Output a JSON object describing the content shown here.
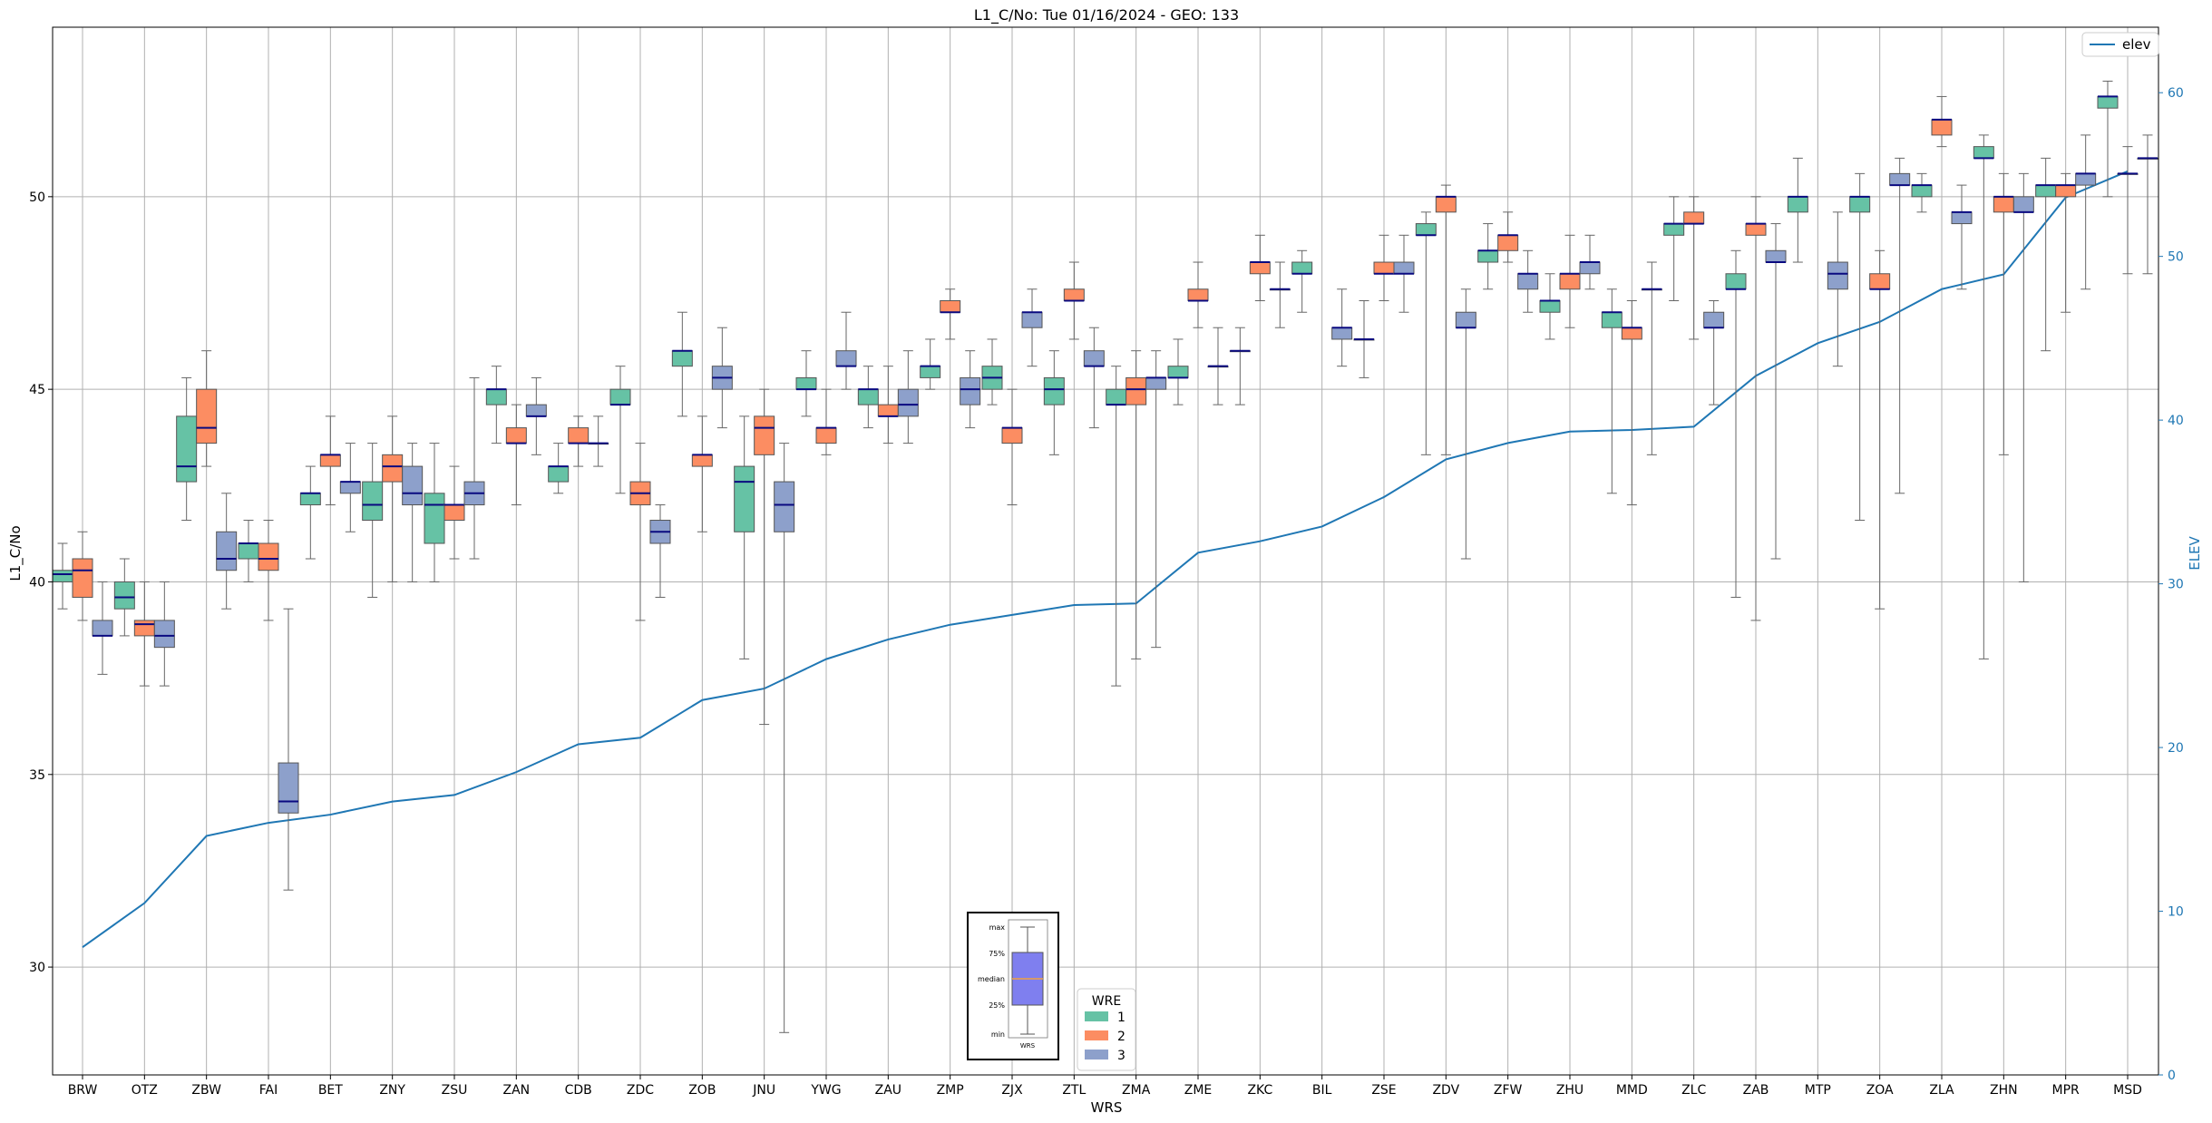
{
  "chart_data": {
    "type": "box",
    "title": "L1_C/No: Tue 01/16/2024 - GEO: 133",
    "xlabel": "WRS",
    "ylabel": "L1_C/No",
    "y2label": "ELEV",
    "ylim": [
      27.2,
      54.4
    ],
    "y2lim": [
      0,
      64
    ],
    "yticks": [
      30,
      35,
      40,
      45,
      50
    ],
    "y2ticks": [
      0,
      10,
      20,
      30,
      40,
      50,
      60
    ],
    "grid": true,
    "categories": [
      "BRW",
      "OTZ",
      "ZBW",
      "FAI",
      "BET",
      "ZNY",
      "ZSU",
      "ZAN",
      "CDB",
      "ZDC",
      "ZOB",
      "JNU",
      "YWG",
      "ZAU",
      "ZMP",
      "ZJX",
      "ZTL",
      "ZMA",
      "ZME",
      "ZKC",
      "BIL",
      "ZSE",
      "ZDV",
      "ZFW",
      "ZHU",
      "MMD",
      "ZLC",
      "ZAB",
      "MTP",
      "ZOA",
      "ZLA",
      "ZHN",
      "MPR",
      "MSD"
    ],
    "wre_colors": {
      "1": "#66c2a5",
      "2": "#fc8d62",
      "3": "#8da0cb"
    },
    "legend": {
      "title": "WRE",
      "entries": [
        "1",
        "2",
        "3"
      ],
      "location": "bottom-center"
    },
    "elev_legend": {
      "label": "elev",
      "color": "#1f77b4",
      "location": "top-right"
    },
    "elev": [
      7.8,
      10.5,
      14.6,
      15.4,
      15.9,
      16.7,
      17.1,
      18.5,
      20.2,
      20.6,
      22.9,
      23.6,
      25.4,
      26.6,
      27.5,
      28.1,
      28.7,
      28.8,
      31.9,
      32.6,
      33.5,
      35.3,
      37.6,
      38.6,
      39.3,
      39.4,
      39.6,
      42.7,
      44.7,
      46.0,
      48.0,
      48.9,
      53.6,
      55.2
    ],
    "boxes": [
      {
        "cat": "BRW",
        "wre": 1,
        "min": 39.3,
        "q1": 40.0,
        "med": 40.2,
        "q3": 40.3,
        "max": 41.0
      },
      {
        "cat": "BRW",
        "wre": 2,
        "min": 39.0,
        "q1": 39.6,
        "med": 40.3,
        "q3": 40.6,
        "max": 41.3
      },
      {
        "cat": "BRW",
        "wre": 3,
        "min": 37.6,
        "q1": 38.6,
        "med": 38.6,
        "q3": 39.0,
        "max": 40.0
      },
      {
        "cat": "OTZ",
        "wre": 1,
        "min": 38.6,
        "q1": 39.3,
        "med": 39.6,
        "q3": 40.0,
        "max": 40.6
      },
      {
        "cat": "OTZ",
        "wre": 2,
        "min": 37.3,
        "q1": 38.6,
        "med": 38.9,
        "q3": 39.0,
        "max": 40.0
      },
      {
        "cat": "OTZ",
        "wre": 3,
        "min": 37.3,
        "q1": 38.3,
        "med": 38.6,
        "q3": 39.0,
        "max": 40.0
      },
      {
        "cat": "ZBW",
        "wre": 1,
        "min": 41.6,
        "q1": 42.6,
        "med": 43.0,
        "q3": 44.3,
        "max": 45.3
      },
      {
        "cat": "ZBW",
        "wre": 2,
        "min": 43.0,
        "q1": 43.6,
        "med": 44.0,
        "q3": 45.0,
        "max": 46.0
      },
      {
        "cat": "ZBW",
        "wre": 3,
        "min": 39.3,
        "q1": 40.3,
        "med": 40.6,
        "q3": 41.3,
        "max": 42.3
      },
      {
        "cat": "FAI",
        "wre": 1,
        "min": 40.0,
        "q1": 40.6,
        "med": 41.0,
        "q3": 41.0,
        "max": 41.6
      },
      {
        "cat": "FAI",
        "wre": 2,
        "min": 39.0,
        "q1": 40.3,
        "med": 40.6,
        "q3": 41.0,
        "max": 41.6
      },
      {
        "cat": "FAI",
        "wre": 3,
        "min": 32.0,
        "q1": 34.0,
        "med": 34.3,
        "q3": 35.3,
        "max": 39.3
      },
      {
        "cat": "BET",
        "wre": 1,
        "min": 40.6,
        "q1": 42.0,
        "med": 42.3,
        "q3": 42.3,
        "max": 43.0
      },
      {
        "cat": "BET",
        "wre": 2,
        "min": 42.0,
        "q1": 43.0,
        "med": 43.3,
        "q3": 43.3,
        "max": 44.3
      },
      {
        "cat": "BET",
        "wre": 3,
        "min": 41.3,
        "q1": 42.3,
        "med": 42.6,
        "q3": 42.6,
        "max": 43.6
      },
      {
        "cat": "ZNY",
        "wre": 1,
        "min": 39.6,
        "q1": 41.6,
        "med": 42.0,
        "q3": 42.6,
        "max": 43.6
      },
      {
        "cat": "ZNY",
        "wre": 2,
        "min": 40.0,
        "q1": 42.6,
        "med": 43.0,
        "q3": 43.3,
        "max": 44.3
      },
      {
        "cat": "ZNY",
        "wre": 3,
        "min": 40.0,
        "q1": 42.0,
        "med": 42.3,
        "q3": 43.0,
        "max": 43.6
      },
      {
        "cat": "ZSU",
        "wre": 1,
        "min": 40.0,
        "q1": 41.0,
        "med": 42.0,
        "q3": 42.3,
        "max": 43.6
      },
      {
        "cat": "ZSU",
        "wre": 2,
        "min": 40.6,
        "q1": 41.6,
        "med": 42.0,
        "q3": 42.0,
        "max": 43.0
      },
      {
        "cat": "ZSU",
        "wre": 3,
        "min": 40.6,
        "q1": 42.0,
        "med": 42.3,
        "q3": 42.6,
        "max": 45.3
      },
      {
        "cat": "ZAN",
        "wre": 1,
        "min": 43.6,
        "q1": 44.6,
        "med": 45.0,
        "q3": 45.0,
        "max": 45.6
      },
      {
        "cat": "ZAN",
        "wre": 2,
        "min": 42.0,
        "q1": 43.6,
        "med": 43.6,
        "q3": 44.0,
        "max": 44.6
      },
      {
        "cat": "ZAN",
        "wre": 3,
        "min": 43.3,
        "q1": 44.3,
        "med": 44.3,
        "q3": 44.6,
        "max": 45.3
      },
      {
        "cat": "CDB",
        "wre": 1,
        "min": 42.3,
        "q1": 42.6,
        "med": 43.0,
        "q3": 43.0,
        "max": 43.6
      },
      {
        "cat": "CDB",
        "wre": 2,
        "min": 43.0,
        "q1": 43.6,
        "med": 43.6,
        "q3": 44.0,
        "max": 44.3
      },
      {
        "cat": "CDB",
        "wre": 3,
        "min": 43.0,
        "q1": 43.6,
        "med": 43.6,
        "q3": 43.6,
        "max": 44.3
      },
      {
        "cat": "ZDC",
        "wre": 1,
        "min": 42.3,
        "q1": 44.6,
        "med": 44.6,
        "q3": 45.0,
        "max": 45.6
      },
      {
        "cat": "ZDC",
        "wre": 2,
        "min": 39.0,
        "q1": 42.0,
        "med": 42.3,
        "q3": 42.6,
        "max": 43.6
      },
      {
        "cat": "ZDC",
        "wre": 3,
        "min": 39.6,
        "q1": 41.0,
        "med": 41.3,
        "q3": 41.6,
        "max": 42.0
      },
      {
        "cat": "ZOB",
        "wre": 1,
        "min": 44.3,
        "q1": 45.6,
        "med": 46.0,
        "q3": 46.0,
        "max": 47.0
      },
      {
        "cat": "ZOB",
        "wre": 2,
        "min": 41.3,
        "q1": 43.0,
        "med": 43.3,
        "q3": 43.3,
        "max": 44.3
      },
      {
        "cat": "ZOB",
        "wre": 3,
        "min": 44.0,
        "q1": 45.0,
        "med": 45.3,
        "q3": 45.6,
        "max": 46.6
      },
      {
        "cat": "JNU",
        "wre": 1,
        "min": 38.0,
        "q1": 41.3,
        "med": 42.6,
        "q3": 43.0,
        "max": 44.3
      },
      {
        "cat": "JNU",
        "wre": 2,
        "min": 36.3,
        "q1": 43.3,
        "med": 44.0,
        "q3": 44.3,
        "max": 45.0
      },
      {
        "cat": "JNU",
        "wre": 3,
        "min": 28.3,
        "q1": 41.3,
        "med": 42.0,
        "q3": 42.6,
        "max": 43.6
      },
      {
        "cat": "YWG",
        "wre": 1,
        "min": 44.3,
        "q1": 45.0,
        "med": 45.0,
        "q3": 45.3,
        "max": 46.0
      },
      {
        "cat": "YWG",
        "wre": 2,
        "min": 43.3,
        "q1": 43.6,
        "med": 44.0,
        "q3": 44.0,
        "max": 45.0
      },
      {
        "cat": "YWG",
        "wre": 3,
        "min": 45.0,
        "q1": 45.6,
        "med": 45.6,
        "q3": 46.0,
        "max": 47.0
      },
      {
        "cat": "ZAU",
        "wre": 1,
        "min": 44.0,
        "q1": 44.6,
        "med": 45.0,
        "q3": 45.0,
        "max": 45.6
      },
      {
        "cat": "ZAU",
        "wre": 2,
        "min": 43.6,
        "q1": 44.3,
        "med": 44.3,
        "q3": 44.6,
        "max": 45.6
      },
      {
        "cat": "ZAU",
        "wre": 3,
        "min": 43.6,
        "q1": 44.3,
        "med": 44.6,
        "q3": 45.0,
        "max": 46.0
      },
      {
        "cat": "ZMP",
        "wre": 1,
        "min": 45.0,
        "q1": 45.3,
        "med": 45.6,
        "q3": 45.6,
        "max": 46.3
      },
      {
        "cat": "ZMP",
        "wre": 2,
        "min": 46.3,
        "q1": 47.0,
        "med": 47.0,
        "q3": 47.3,
        "max": 47.6
      },
      {
        "cat": "ZMP",
        "wre": 3,
        "min": 44.0,
        "q1": 44.6,
        "med": 45.0,
        "q3": 45.3,
        "max": 46.0
      },
      {
        "cat": "ZJX",
        "wre": 1,
        "min": 44.6,
        "q1": 45.0,
        "med": 45.3,
        "q3": 45.6,
        "max": 46.3
      },
      {
        "cat": "ZJX",
        "wre": 2,
        "min": 42.0,
        "q1": 43.6,
        "med": 44.0,
        "q3": 44.0,
        "max": 45.0
      },
      {
        "cat": "ZJX",
        "wre": 3,
        "min": 45.6,
        "q1": 46.6,
        "med": 47.0,
        "q3": 47.0,
        "max": 47.6
      },
      {
        "cat": "ZTL",
        "wre": 1,
        "min": 43.3,
        "q1": 44.6,
        "med": 45.0,
        "q3": 45.3,
        "max": 46.0
      },
      {
        "cat": "ZTL",
        "wre": 2,
        "min": 46.3,
        "q1": 47.3,
        "med": 47.3,
        "q3": 47.6,
        "max": 48.3
      },
      {
        "cat": "ZTL",
        "wre": 3,
        "min": 44.0,
        "q1": 45.6,
        "med": 45.6,
        "q3": 46.0,
        "max": 46.6
      },
      {
        "cat": "ZMA",
        "wre": 1,
        "min": 37.3,
        "q1": 44.6,
        "med": 44.6,
        "q3": 45.0,
        "max": 45.6
      },
      {
        "cat": "ZMA",
        "wre": 2,
        "min": 38.0,
        "q1": 44.6,
        "med": 45.0,
        "q3": 45.3,
        "max": 46.0
      },
      {
        "cat": "ZMA",
        "wre": 3,
        "min": 38.3,
        "q1": 45.0,
        "med": 45.3,
        "q3": 45.3,
        "max": 46.0
      },
      {
        "cat": "ZME",
        "wre": 1,
        "min": 44.6,
        "q1": 45.3,
        "med": 45.3,
        "q3": 45.6,
        "max": 46.3
      },
      {
        "cat": "ZME",
        "wre": 2,
        "min": 46.6,
        "q1": 47.3,
        "med": 47.3,
        "q3": 47.6,
        "max": 48.3
      },
      {
        "cat": "ZME",
        "wre": 3,
        "min": 44.6,
        "q1": 45.6,
        "med": 45.6,
        "q3": 45.6,
        "max": 46.6
      },
      {
        "cat": "ZKC",
        "wre": 1,
        "min": 44.6,
        "q1": 46.0,
        "med": 46.0,
        "q3": 46.0,
        "max": 46.6
      },
      {
        "cat": "ZKC",
        "wre": 2,
        "min": 47.3,
        "q1": 48.0,
        "med": 48.3,
        "q3": 48.3,
        "max": 49.0
      },
      {
        "cat": "ZKC",
        "wre": 3,
        "min": 46.6,
        "q1": 47.6,
        "med": 47.6,
        "q3": 47.6,
        "max": 48.3
      },
      {
        "cat": "BIL",
        "wre": 1,
        "min": 47.0,
        "q1": 48.0,
        "med": 48.0,
        "q3": 48.3,
        "max": 48.6
      },
      {
        "cat": "BIL",
        "wre": 2,
        "min": null,
        "q1": null,
        "med": null,
        "q3": null,
        "max": null
      },
      {
        "cat": "BIL",
        "wre": 3,
        "min": 45.6,
        "q1": 46.3,
        "med": 46.6,
        "q3": 46.6,
        "max": 47.6
      },
      {
        "cat": "ZSE",
        "wre": 1,
        "min": 45.3,
        "q1": 46.3,
        "med": 46.3,
        "q3": 46.3,
        "max": 47.3
      },
      {
        "cat": "ZSE",
        "wre": 2,
        "min": 47.3,
        "q1": 48.0,
        "med": 48.0,
        "q3": 48.3,
        "max": 49.0
      },
      {
        "cat": "ZSE",
        "wre": 3,
        "min": 47.0,
        "q1": 48.0,
        "med": 48.0,
        "q3": 48.3,
        "max": 49.0
      },
      {
        "cat": "ZDV",
        "wre": 1,
        "min": 43.3,
        "q1": 49.0,
        "med": 49.0,
        "q3": 49.3,
        "max": 49.6
      },
      {
        "cat": "ZDV",
        "wre": 2,
        "min": 43.3,
        "q1": 49.6,
        "med": 50.0,
        "q3": 50.0,
        "max": 50.3
      },
      {
        "cat": "ZDV",
        "wre": 3,
        "min": 40.6,
        "q1": 46.6,
        "med": 46.6,
        "q3": 47.0,
        "max": 47.6
      },
      {
        "cat": "ZFW",
        "wre": 1,
        "min": 47.6,
        "q1": 48.3,
        "med": 48.6,
        "q3": 48.6,
        "max": 49.3
      },
      {
        "cat": "ZFW",
        "wre": 2,
        "min": 48.3,
        "q1": 48.6,
        "med": 49.0,
        "q3": 49.0,
        "max": 49.6
      },
      {
        "cat": "ZFW",
        "wre": 3,
        "min": 47.0,
        "q1": 47.6,
        "med": 48.0,
        "q3": 48.0,
        "max": 48.6
      },
      {
        "cat": "ZHU",
        "wre": 1,
        "min": 46.3,
        "q1": 47.0,
        "med": 47.3,
        "q3": 47.3,
        "max": 48.0
      },
      {
        "cat": "ZHU",
        "wre": 2,
        "min": 46.6,
        "q1": 47.6,
        "med": 48.0,
        "q3": 48.0,
        "max": 49.0
      },
      {
        "cat": "ZHU",
        "wre": 3,
        "min": 47.6,
        "q1": 48.0,
        "med": 48.3,
        "q3": 48.3,
        "max": 49.0
      },
      {
        "cat": "MMD",
        "wre": 1,
        "min": 42.3,
        "q1": 46.6,
        "med": 47.0,
        "q3": 47.0,
        "max": 47.6
      },
      {
        "cat": "MMD",
        "wre": 2,
        "min": 42.0,
        "q1": 46.3,
        "med": 46.6,
        "q3": 46.6,
        "max": 47.3
      },
      {
        "cat": "MMD",
        "wre": 3,
        "min": 43.3,
        "q1": 47.6,
        "med": 47.6,
        "q3": 47.6,
        "max": 48.3
      },
      {
        "cat": "ZLC",
        "wre": 1,
        "min": 47.3,
        "q1": 49.0,
        "med": 49.3,
        "q3": 49.3,
        "max": 50.0
      },
      {
        "cat": "ZLC",
        "wre": 2,
        "min": 46.3,
        "q1": 49.3,
        "med": 49.3,
        "q3": 49.6,
        "max": 50.0
      },
      {
        "cat": "ZLC",
        "wre": 3,
        "min": 44.6,
        "q1": 46.6,
        "med": 46.6,
        "q3": 47.0,
        "max": 47.3
      },
      {
        "cat": "ZAB",
        "wre": 1,
        "min": 39.6,
        "q1": 47.6,
        "med": 47.6,
        "q3": 48.0,
        "max": 48.6
      },
      {
        "cat": "ZAB",
        "wre": 2,
        "min": 39.0,
        "q1": 49.0,
        "med": 49.3,
        "q3": 49.3,
        "max": 50.0
      },
      {
        "cat": "ZAB",
        "wre": 3,
        "min": 40.6,
        "q1": 48.3,
        "med": 48.3,
        "q3": 48.6,
        "max": 49.3
      },
      {
        "cat": "MTP",
        "wre": 1,
        "min": 48.3,
        "q1": 49.6,
        "med": 50.0,
        "q3": 50.0,
        "max": 51.0
      },
      {
        "cat": "MTP",
        "wre": 2,
        "min": null,
        "q1": null,
        "med": null,
        "q3": null,
        "max": null
      },
      {
        "cat": "MTP",
        "wre": 3,
        "min": 45.6,
        "q1": 47.6,
        "med": 48.0,
        "q3": 48.3,
        "max": 49.6
      },
      {
        "cat": "ZOA",
        "wre": 1,
        "min": 41.6,
        "q1": 49.6,
        "med": 50.0,
        "q3": 50.0,
        "max": 50.6
      },
      {
        "cat": "ZOA",
        "wre": 2,
        "min": 39.3,
        "q1": 47.6,
        "med": 47.6,
        "q3": 48.0,
        "max": 48.6
      },
      {
        "cat": "ZOA",
        "wre": 3,
        "min": 42.3,
        "q1": 50.3,
        "med": 50.3,
        "q3": 50.6,
        "max": 51.0
      },
      {
        "cat": "ZLA",
        "wre": 1,
        "min": 49.6,
        "q1": 50.0,
        "med": 50.3,
        "q3": 50.3,
        "max": 50.6
      },
      {
        "cat": "ZLA",
        "wre": 2,
        "min": 51.3,
        "q1": 51.6,
        "med": 52.0,
        "q3": 52.0,
        "max": 52.6
      },
      {
        "cat": "ZLA",
        "wre": 3,
        "min": 47.6,
        "q1": 49.3,
        "med": 49.6,
        "q3": 49.6,
        "max": 50.3
      },
      {
        "cat": "ZHN",
        "wre": 1,
        "min": 38.0,
        "q1": 51.0,
        "med": 51.0,
        "q3": 51.3,
        "max": 51.6
      },
      {
        "cat": "ZHN",
        "wre": 2,
        "min": 43.3,
        "q1": 49.6,
        "med": 50.0,
        "q3": 50.0,
        "max": 50.6
      },
      {
        "cat": "ZHN",
        "wre": 3,
        "min": 40.0,
        "q1": 49.6,
        "med": 49.6,
        "q3": 50.0,
        "max": 50.6
      },
      {
        "cat": "MPR",
        "wre": 1,
        "min": 46.0,
        "q1": 50.0,
        "med": 50.3,
        "q3": 50.3,
        "max": 51.0
      },
      {
        "cat": "MPR",
        "wre": 2,
        "min": 47.0,
        "q1": 50.0,
        "med": 50.3,
        "q3": 50.3,
        "max": 50.6
      },
      {
        "cat": "MPR",
        "wre": 3,
        "min": 47.6,
        "q1": 50.3,
        "med": 50.6,
        "q3": 50.6,
        "max": 51.6
      },
      {
        "cat": "MSD",
        "wre": 1,
        "min": 50.0,
        "q1": 52.3,
        "med": 52.6,
        "q3": 52.6,
        "max": 53.0
      },
      {
        "cat": "MSD",
        "wre": 2,
        "min": 48.0,
        "q1": 50.6,
        "med": 50.6,
        "q3": 50.6,
        "max": 51.3
      },
      {
        "cat": "MSD",
        "wre": 3,
        "min": 48.0,
        "q1": 51.0,
        "med": 51.0,
        "q3": 51.0,
        "max": 51.6
      }
    ]
  },
  "inset_key": {
    "labels": [
      "max",
      "75%",
      "median",
      "25%",
      "min"
    ],
    "xlabel": "WRS"
  }
}
